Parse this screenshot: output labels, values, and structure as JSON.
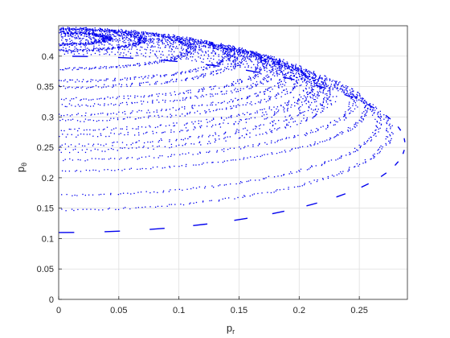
{
  "chart_data": {
    "type": "scatter",
    "title": "",
    "xlabel": "p",
    "xlabel_subscript": "r",
    "ylabel": "p",
    "ylabel_subscript": "θ",
    "xlim": [
      0,
      0.29
    ],
    "ylim": [
      0,
      0.45
    ],
    "x_ticks": [
      0,
      0.05,
      0.1,
      0.15,
      0.2,
      0.25
    ],
    "x_tick_labels": [
      "0",
      "0.05",
      "0.1",
      "0.15",
      "0.2",
      "0.25"
    ],
    "y_ticks": [
      0,
      0.05,
      0.1,
      0.15,
      0.2,
      0.25,
      0.3,
      0.35,
      0.4
    ],
    "y_tick_labels": [
      "0",
      "0.05",
      "0.1",
      "0.15",
      "0.2",
      "0.25",
      "0.3",
      "0.35",
      "0.4"
    ],
    "grid": true,
    "marker_color": "#0000ee",
    "series": [
      {
        "style": "dots",
        "y0": 0.42,
        "ymax": 0.44,
        "xmax": 0.04,
        "band": 0.004
      },
      {
        "style": "dots",
        "y0": 0.41,
        "ymax": 0.445,
        "xmax": 0.07,
        "band": 0.004
      },
      {
        "style": "dots",
        "y0": 0.38,
        "ymax": 0.447,
        "xmax": 0.11,
        "band": 0.004
      },
      {
        "style": "dots",
        "y0": 0.36,
        "ymax": 0.445,
        "xmax": 0.14,
        "band": 0.004
      },
      {
        "style": "dots",
        "y0": 0.35,
        "ymax": 0.443,
        "xmax": 0.15,
        "band": 0.005
      },
      {
        "style": "dots",
        "y0": 0.33,
        "ymax": 0.44,
        "xmax": 0.17,
        "band": 0.005
      },
      {
        "style": "dots",
        "y0": 0.32,
        "ymax": 0.438,
        "xmax": 0.18,
        "band": 0.005
      },
      {
        "style": "dots",
        "y0": 0.305,
        "ymax": 0.436,
        "xmax": 0.19,
        "band": 0.005
      },
      {
        "style": "dots",
        "y0": 0.295,
        "ymax": 0.434,
        "xmax": 0.2,
        "band": 0.005
      },
      {
        "style": "dots",
        "y0": 0.28,
        "ymax": 0.432,
        "xmax": 0.21,
        "band": 0.005
      },
      {
        "style": "dots",
        "y0": 0.27,
        "ymax": 0.43,
        "xmax": 0.215,
        "band": 0.006
      },
      {
        "style": "dots",
        "y0": 0.255,
        "ymax": 0.428,
        "xmax": 0.22,
        "band": 0.006
      },
      {
        "style": "dots",
        "y0": 0.245,
        "ymax": 0.425,
        "xmax": 0.225,
        "band": 0.006
      },
      {
        "style": "dots",
        "y0": 0.23,
        "ymax": 0.42,
        "xmax": 0.245,
        "band": 0.004
      },
      {
        "style": "dots",
        "y0": 0.212,
        "ymax": 0.415,
        "xmax": 0.255,
        "band": 0.003
      },
      {
        "style": "dots",
        "y0": 0.172,
        "ymax": 0.41,
        "xmax": 0.265,
        "band": 0.003
      },
      {
        "style": "dots",
        "y0": 0.148,
        "ymax": 0.405,
        "xmax": 0.275,
        "band": 0.003
      },
      {
        "style": "dashed",
        "y0": 0.11,
        "ymax": 0.4,
        "xmax": 0.288,
        "band": 0.002
      }
    ]
  }
}
